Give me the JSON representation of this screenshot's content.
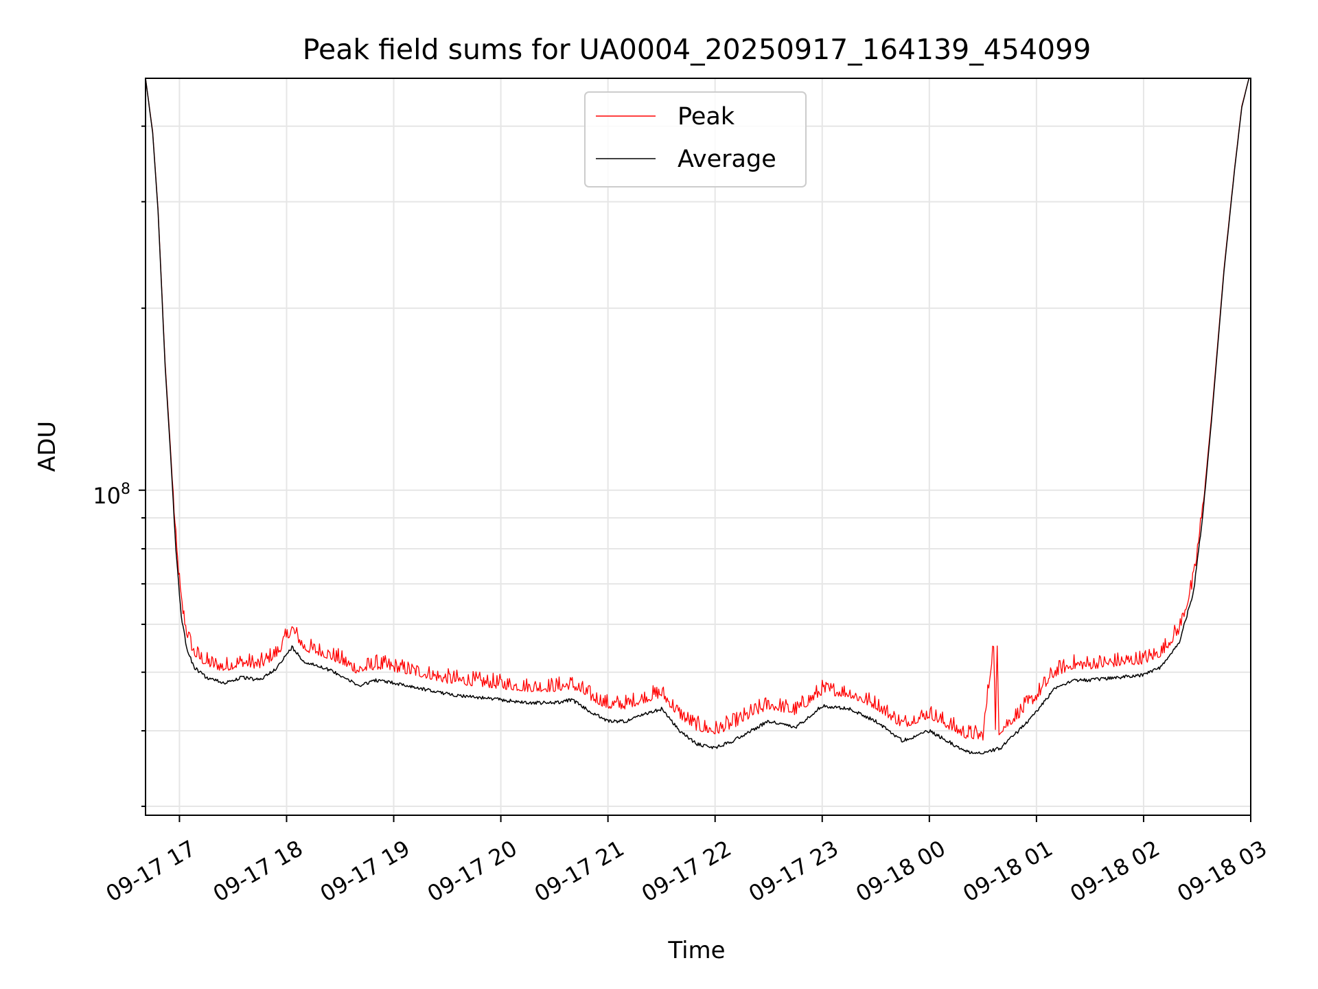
{
  "chart_data": {
    "type": "line",
    "title": "Peak field sums for UA0004_20250917_164139_454099",
    "xlabel": "Time",
    "ylabel": "ADU",
    "y_scale": "log",
    "y_tick_label": {
      "base": "10",
      "exp": "8",
      "value": 100000000
    },
    "ylim": [
      29000000,
      480000000
    ],
    "xlim": [
      "2025-09-17 16:41",
      "2025-09-18 03:00"
    ],
    "x_ticks": [
      {
        "t": "2025-09-17 17:00",
        "label": "09-17 17"
      },
      {
        "t": "2025-09-17 18:00",
        "label": "09-17 18"
      },
      {
        "t": "2025-09-17 19:00",
        "label": "09-17 19"
      },
      {
        "t": "2025-09-17 20:00",
        "label": "09-17 20"
      },
      {
        "t": "2025-09-17 21:00",
        "label": "09-17 21"
      },
      {
        "t": "2025-09-17 22:00",
        "label": "09-17 22"
      },
      {
        "t": "2025-09-17 23:00",
        "label": "09-17 23"
      },
      {
        "t": "2025-09-18 00:00",
        "label": "09-18 00"
      },
      {
        "t": "2025-09-18 01:00",
        "label": "09-18 01"
      },
      {
        "t": "2025-09-18 02:00",
        "label": "09-18 02"
      },
      {
        "t": "2025-09-18 03:00",
        "label": "09-18 03"
      }
    ],
    "grid": true,
    "legend_position": "upper center",
    "colors": {
      "peak": "#ff0000",
      "average": "#000000",
      "grid": "#e6e6e6"
    },
    "series": [
      {
        "name": "Average",
        "color": "#000000",
        "points": [
          [
            "2025-09-17 16:41",
            480000000
          ],
          [
            "2025-09-17 16:45",
            390000000
          ],
          [
            "2025-09-17 16:48",
            290000000
          ],
          [
            "2025-09-17 16:52",
            160000000
          ],
          [
            "2025-09-17 16:55",
            115000000
          ],
          [
            "2025-09-17 16:58",
            80000000
          ],
          [
            "2025-09-17 17:01",
            62000000
          ],
          [
            "2025-09-17 17:04",
            55000000
          ],
          [
            "2025-09-17 17:08",
            51000000
          ],
          [
            "2025-09-17 17:15",
            49000000
          ],
          [
            "2025-09-17 17:25",
            48000000
          ],
          [
            "2025-09-17 17:35",
            49000000
          ],
          [
            "2025-09-17 17:45",
            48500000
          ],
          [
            "2025-09-17 17:55",
            51000000
          ],
          [
            "2025-09-17 18:03",
            55000000
          ],
          [
            "2025-09-17 18:10",
            52000000
          ],
          [
            "2025-09-17 18:20",
            51000000
          ],
          [
            "2025-09-17 18:30",
            49500000
          ],
          [
            "2025-09-17 18:40",
            47500000
          ],
          [
            "2025-09-17 18:50",
            48500000
          ],
          [
            "2025-09-17 19:00",
            48000000
          ],
          [
            "2025-09-17 19:15",
            47000000
          ],
          [
            "2025-09-17 19:30",
            46000000
          ],
          [
            "2025-09-17 19:45",
            45500000
          ],
          [
            "2025-09-17 20:00",
            45000000
          ],
          [
            "2025-09-17 20:15",
            44500000
          ],
          [
            "2025-09-17 20:30",
            44500000
          ],
          [
            "2025-09-17 20:40",
            45000000
          ],
          [
            "2025-09-17 20:50",
            43000000
          ],
          [
            "2025-09-17 21:00",
            41500000
          ],
          [
            "2025-09-17 21:10",
            41500000
          ],
          [
            "2025-09-17 21:20",
            42500000
          ],
          [
            "2025-09-17 21:30",
            43500000
          ],
          [
            "2025-09-17 21:40",
            40000000
          ],
          [
            "2025-09-17 21:50",
            38000000
          ],
          [
            "2025-09-17 22:00",
            37500000
          ],
          [
            "2025-09-17 22:10",
            38500000
          ],
          [
            "2025-09-17 22:20",
            40000000
          ],
          [
            "2025-09-17 22:30",
            41500000
          ],
          [
            "2025-09-17 22:45",
            40500000
          ],
          [
            "2025-09-17 23:00",
            44000000
          ],
          [
            "2025-09-17 23:15",
            43500000
          ],
          [
            "2025-09-17 23:30",
            41500000
          ],
          [
            "2025-09-17 23:45",
            38500000
          ],
          [
            "2025-09-18 00:00",
            40000000
          ],
          [
            "2025-09-18 00:10",
            38500000
          ],
          [
            "2025-09-18 00:20",
            37000000
          ],
          [
            "2025-09-18 00:30",
            36700000
          ],
          [
            "2025-09-18 00:40",
            37500000
          ],
          [
            "2025-09-18 00:50",
            40000000
          ],
          [
            "2025-09-18 01:00",
            43000000
          ],
          [
            "2025-09-18 01:10",
            47000000
          ],
          [
            "2025-09-18 01:20",
            48500000
          ],
          [
            "2025-09-18 01:30",
            48500000
          ],
          [
            "2025-09-18 01:45",
            49000000
          ],
          [
            "2025-09-18 02:00",
            49500000
          ],
          [
            "2025-09-18 02:10",
            51000000
          ],
          [
            "2025-09-18 02:20",
            56000000
          ],
          [
            "2025-09-18 02:28",
            68000000
          ],
          [
            "2025-09-18 02:33",
            90000000
          ],
          [
            "2025-09-18 02:38",
            130000000
          ],
          [
            "2025-09-18 02:45",
            230000000
          ],
          [
            "2025-09-18 02:51",
            340000000
          ],
          [
            "2025-09-18 02:55",
            430000000
          ],
          [
            "2025-09-18 02:59",
            480000000
          ]
        ]
      },
      {
        "name": "Peak",
        "color": "#ff0000",
        "points": [
          [
            "2025-09-17 16:41",
            480000000
          ],
          [
            "2025-09-17 16:45",
            392000000
          ],
          [
            "2025-09-17 16:48",
            292000000
          ],
          [
            "2025-09-17 16:52",
            162000000
          ],
          [
            "2025-09-17 16:55",
            117000000
          ],
          [
            "2025-09-17 16:58",
            82000000
          ],
          [
            "2025-09-17 17:01",
            65000000
          ],
          [
            "2025-09-17 17:04",
            58000000
          ],
          [
            "2025-09-17 17:08",
            53500000
          ],
          [
            "2025-09-17 17:15",
            51500000
          ],
          [
            "2025-09-17 17:25",
            50500000
          ],
          [
            "2025-09-17 17:35",
            51500000
          ],
          [
            "2025-09-17 17:45",
            51000000
          ],
          [
            "2025-09-17 17:55",
            53500000
          ],
          [
            "2025-09-17 18:03",
            58500000
          ],
          [
            "2025-09-17 18:10",
            54500000
          ],
          [
            "2025-09-17 18:20",
            53500000
          ],
          [
            "2025-09-17 18:30",
            52000000
          ],
          [
            "2025-09-17 18:40",
            50000000
          ],
          [
            "2025-09-17 18:50",
            51000000
          ],
          [
            "2025-09-17 19:00",
            50500000
          ],
          [
            "2025-09-17 19:15",
            49500000
          ],
          [
            "2025-09-17 19:30",
            48300000
          ],
          [
            "2025-09-17 19:45",
            47800000
          ],
          [
            "2025-09-17 20:00",
            47300000
          ],
          [
            "2025-09-17 20:15",
            46800000
          ],
          [
            "2025-09-17 20:30",
            46800000
          ],
          [
            "2025-09-17 20:40",
            47300000
          ],
          [
            "2025-09-17 20:50",
            45300000
          ],
          [
            "2025-09-17 21:00",
            43800000
          ],
          [
            "2025-09-17 21:10",
            43800000
          ],
          [
            "2025-09-17 21:20",
            44800000
          ],
          [
            "2025-09-17 21:30",
            45800000
          ],
          [
            "2025-09-17 21:40",
            42300000
          ],
          [
            "2025-09-17 21:50",
            40300000
          ],
          [
            "2025-09-17 22:00",
            39700000
          ],
          [
            "2025-09-17 22:10",
            40700000
          ],
          [
            "2025-09-17 22:20",
            42300000
          ],
          [
            "2025-09-17 22:30",
            43800000
          ],
          [
            "2025-09-17 22:45",
            42800000
          ],
          [
            "2025-09-17 23:00",
            46300000
          ],
          [
            "2025-09-17 23:15",
            45800000
          ],
          [
            "2025-09-17 23:30",
            43800000
          ],
          [
            "2025-09-17 23:45",
            40700000
          ],
          [
            "2025-09-18 00:00",
            42300000
          ],
          [
            "2025-09-18 00:10",
            40700000
          ],
          [
            "2025-09-18 00:20",
            39200000
          ],
          [
            "2025-09-18 00:30",
            38900000
          ],
          [
            "2025-09-18 00:36",
            55500000
          ],
          [
            "2025-09-18 00:37",
            39500000
          ],
          [
            "2025-09-18 00:38",
            54500000
          ],
          [
            "2025-09-18 00:39",
            39700000
          ],
          [
            "2025-09-18 00:50",
            42300000
          ],
          [
            "2025-09-18 01:00",
            45300000
          ],
          [
            "2025-09-18 01:10",
            49500000
          ],
          [
            "2025-09-18 01:20",
            51000000
          ],
          [
            "2025-09-18 01:30",
            51000000
          ],
          [
            "2025-09-18 01:45",
            51500000
          ],
          [
            "2025-09-18 02:00",
            52000000
          ],
          [
            "2025-09-18 02:10",
            53500000
          ],
          [
            "2025-09-18 02:20",
            58500000
          ],
          [
            "2025-09-18 02:28",
            70500000
          ],
          [
            "2025-09-18 02:33",
            92000000
          ],
          [
            "2025-09-18 02:38",
            132000000
          ],
          [
            "2025-09-18 02:45",
            232000000
          ],
          [
            "2025-09-18 02:51",
            342000000
          ],
          [
            "2025-09-18 02:55",
            432000000
          ],
          [
            "2025-09-18 02:59",
            480000000
          ]
        ]
      }
    ],
    "legend": [
      {
        "label": "Peak",
        "color": "#ff0000"
      },
      {
        "label": "Average",
        "color": "#000000"
      }
    ]
  }
}
